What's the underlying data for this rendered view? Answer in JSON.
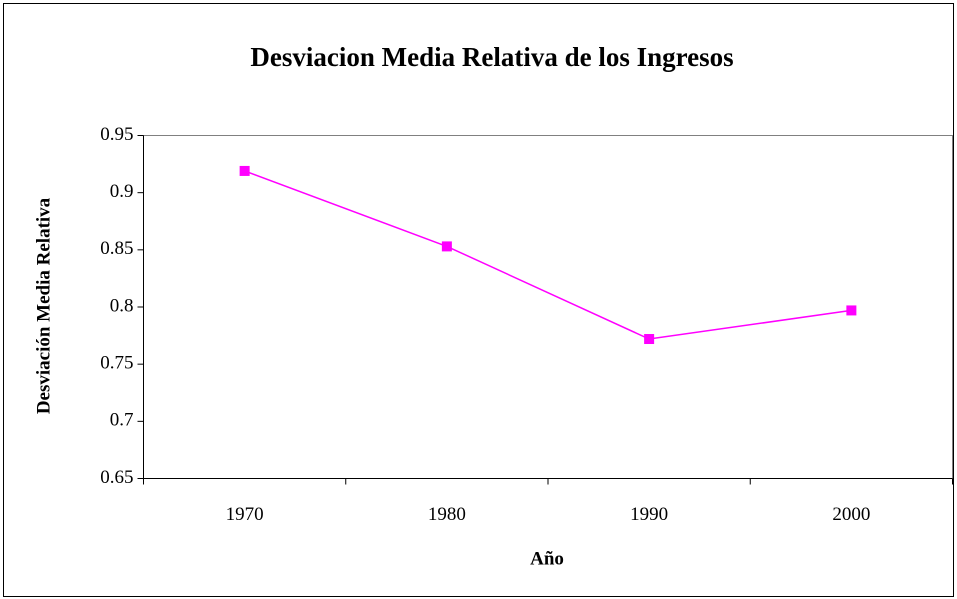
{
  "chart_data": {
    "type": "line",
    "title": "Desviacion Media Relativa de los Ingresos",
    "x_label": "Año",
    "y_label": "Desviación Media Relativa",
    "categories": [
      "1970",
      "1980",
      "1990",
      "2000"
    ],
    "series": [
      {
        "name": "Desviación Media Relativa",
        "color": "#ff00ff",
        "values": [
          0.919,
          0.853,
          0.772,
          0.797
        ]
      }
    ],
    "ylim": [
      0.65,
      0.95
    ],
    "yticks": [
      0.65,
      0.7,
      0.75,
      0.8,
      0.85,
      0.9,
      0.95
    ],
    "grid": false,
    "legend": false
  }
}
